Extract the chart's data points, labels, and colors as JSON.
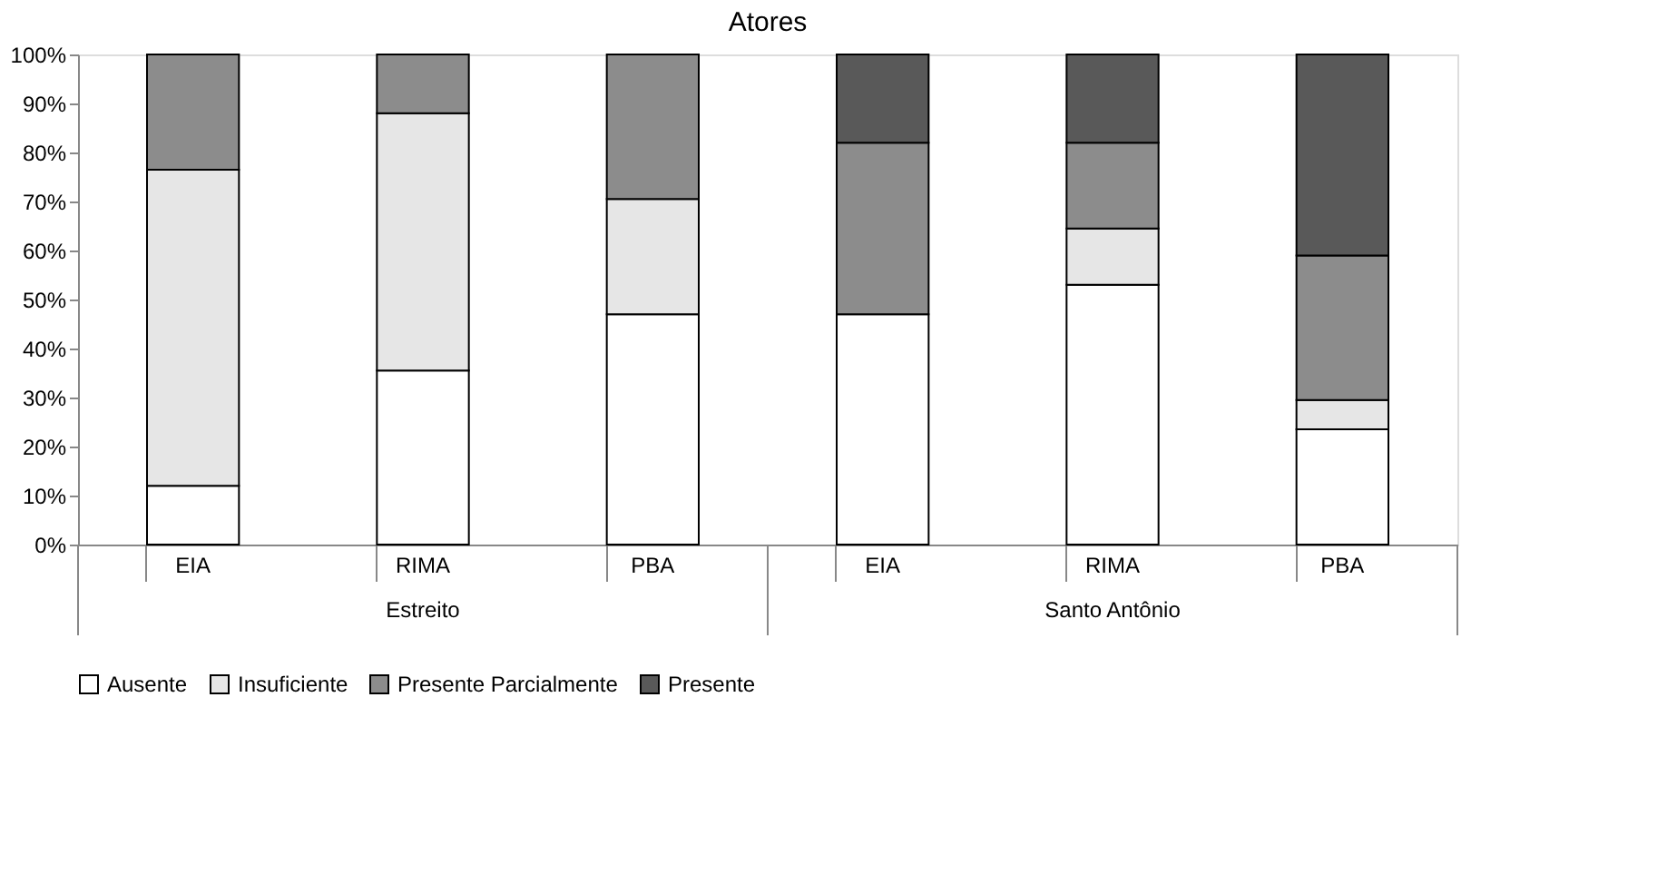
{
  "chart_data": {
    "type": "bar",
    "stacked": true,
    "title": "Atores",
    "categories": [
      "EIA",
      "RIMA",
      "PBA",
      "EIA",
      "RIMA",
      "PBA"
    ],
    "series": [
      {
        "name": "Ausente",
        "color": "#ffffff",
        "values": [
          12,
          35.5,
          47,
          47,
          53,
          23.5
        ]
      },
      {
        "name": "Insuficiente",
        "color": "#e6e6e6",
        "values": [
          64.5,
          52.5,
          23.5,
          null,
          11.5,
          6
        ]
      },
      {
        "name": "Presente Parcialmente",
        "color": "#8c8c8c",
        "values": [
          23.5,
          12,
          29.5,
          35,
          17.5,
          29.5
        ]
      },
      {
        "name": "Presente",
        "color": "#595959",
        "values": [
          null,
          null,
          null,
          18,
          18,
          41
        ]
      }
    ],
    "ylim": [
      0,
      100
    ],
    "yticks": [
      {
        "value": 0,
        "label": "0%"
      },
      {
        "value": 10,
        "label": "10%"
      },
      {
        "value": 20,
        "label": "20%"
      },
      {
        "value": 30,
        "label": "30%"
      },
      {
        "value": 40,
        "label": "40%"
      },
      {
        "value": 50,
        "label": "50%"
      },
      {
        "value": 60,
        "label": "60%"
      },
      {
        "value": 70,
        "label": "70%"
      },
      {
        "value": 80,
        "label": "80%"
      },
      {
        "value": 90,
        "label": "90%"
      },
      {
        "value": 100,
        "label": "100%"
      }
    ],
    "annotations": [
      "Estreito",
      "Santo Antônio"
    ],
    "grid": false,
    "legend": "bottom"
  }
}
